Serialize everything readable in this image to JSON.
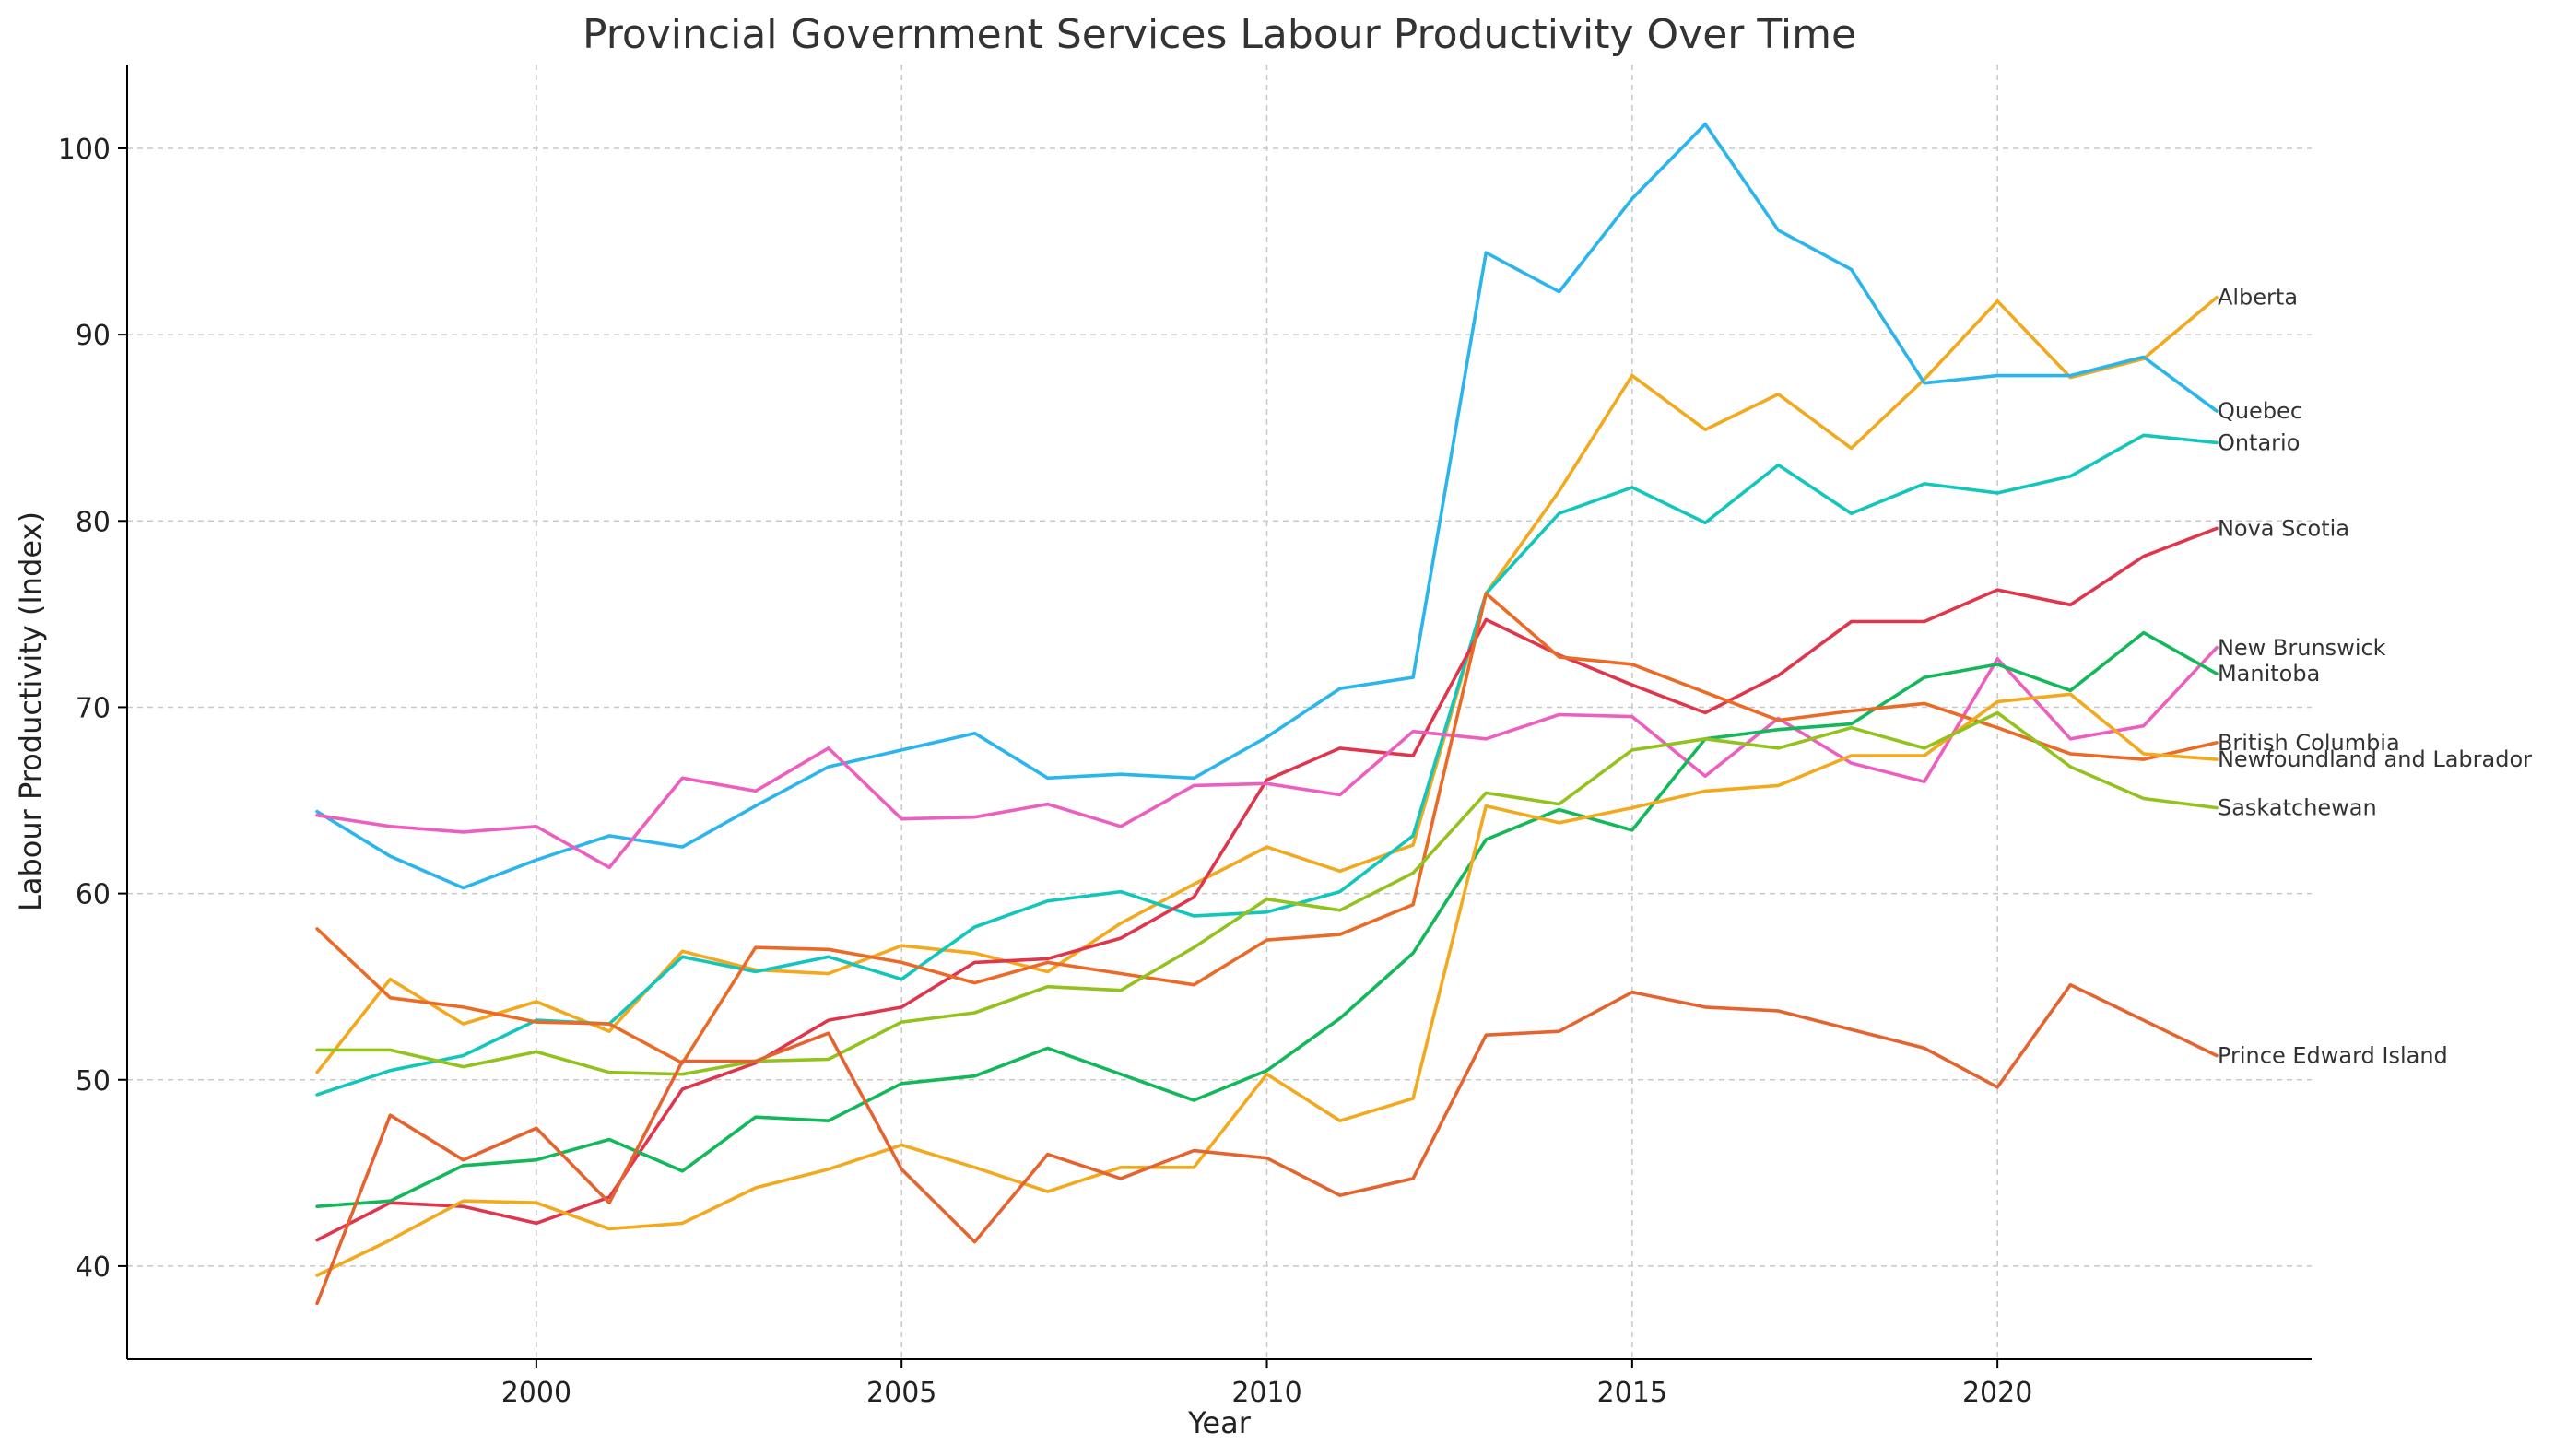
{
  "chart_data": {
    "type": "line",
    "title": "Provincial Government Services Labour Productivity Over Time",
    "xlabel": "Year",
    "ylabel": "Labour Productivity (Index)",
    "xlim": [
      1994.4,
      2024.3
    ],
    "ylim": [
      35,
      104.5
    ],
    "xticks": [
      2000,
      2005,
      2010,
      2015,
      2020
    ],
    "yticks": [
      40,
      50,
      60,
      70,
      80,
      90,
      100
    ],
    "grid": true,
    "x": [
      1997,
      1998,
      1999,
      2000,
      2001,
      2002,
      2003,
      2004,
      2005,
      2006,
      2007,
      2008,
      2009,
      2010,
      2011,
      2012,
      2013,
      2014,
      2015,
      2016,
      2017,
      2018,
      2019,
      2020,
      2021,
      2022,
      2023
    ],
    "series": [
      {
        "name": "Alberta",
        "color": "#f2a91e",
        "label_y": 92.0,
        "values": [
          50.4,
          55.4,
          53.0,
          54.2,
          52.6,
          56.9,
          55.9,
          55.7,
          57.2,
          56.8,
          55.8,
          58.4,
          60.5,
          62.5,
          61.2,
          62.6,
          76.1,
          81.6,
          87.8,
          84.9,
          86.8,
          83.9,
          87.6,
          91.8,
          87.7,
          88.7,
          92.0
        ]
      },
      {
        "name": "Quebec",
        "color": "#2bb5ec",
        "label_y": 85.9,
        "values": [
          64.4,
          62.0,
          60.3,
          61.8,
          63.1,
          62.5,
          64.7,
          66.8,
          67.7,
          68.6,
          66.2,
          66.4,
          66.2,
          68.4,
          71.0,
          71.6,
          94.4,
          92.3,
          97.3,
          101.3,
          95.6,
          93.5,
          87.4,
          87.8,
          87.8,
          88.8,
          85.9
        ]
      },
      {
        "name": "Ontario",
        "color": "#13c6bc",
        "label_y": 84.2,
        "values": [
          49.2,
          50.5,
          51.3,
          53.2,
          53.0,
          56.6,
          55.8,
          56.6,
          55.4,
          58.2,
          59.6,
          60.1,
          58.8,
          59.0,
          60.1,
          63.1,
          76.1,
          80.4,
          81.8,
          79.9,
          83.0,
          80.4,
          82.0,
          81.5,
          82.4,
          84.6,
          84.2
        ]
      },
      {
        "name": "Nova Scotia",
        "color": "#e0364d",
        "label_y": 79.6,
        "values": [
          41.4,
          43.4,
          43.2,
          42.3,
          43.7,
          49.5,
          50.9,
          53.2,
          53.9,
          56.3,
          56.5,
          57.6,
          59.8,
          66.1,
          67.8,
          67.4,
          74.7,
          72.8,
          71.2,
          69.7,
          71.7,
          74.6,
          74.6,
          76.3,
          75.5,
          78.1,
          79.6
        ]
      },
      {
        "name": "New Brunswick",
        "color": "#ec5fbf",
        "label_y": 73.2,
        "values": [
          64.2,
          63.6,
          63.3,
          63.6,
          61.4,
          66.2,
          65.5,
          67.8,
          64.0,
          64.1,
          64.8,
          63.6,
          65.8,
          65.9,
          65.3,
          68.7,
          68.3,
          69.6,
          69.5,
          66.3,
          69.4,
          67.0,
          66.0,
          72.6,
          68.3,
          69.0,
          73.2
        ]
      },
      {
        "name": "Manitoba",
        "color": "#12b85a",
        "label_y": 71.8,
        "values": [
          43.2,
          43.5,
          45.4,
          45.7,
          46.8,
          45.1,
          48.0,
          47.8,
          49.8,
          50.2,
          51.7,
          50.3,
          48.9,
          50.5,
          53.3,
          56.8,
          62.9,
          64.5,
          63.4,
          68.3,
          68.8,
          69.1,
          71.6,
          72.3,
          70.9,
          74.0,
          71.8
        ]
      },
      {
        "name": "British Columbia",
        "color": "#ea6a26",
        "label_y": 68.1,
        "values": [
          58.1,
          54.4,
          53.9,
          53.1,
          53.0,
          50.9,
          57.1,
          57.0,
          56.3,
          55.2,
          56.3,
          55.7,
          55.1,
          57.5,
          57.8,
          59.4,
          76.1,
          72.7,
          72.3,
          70.8,
          69.3,
          69.8,
          70.2,
          68.9,
          67.5,
          67.2,
          68.1
        ]
      },
      {
        "name": "Newfoundland and Labrador",
        "color": "#f2a91e",
        "label_y": 67.2,
        "values": [
          39.5,
          41.4,
          43.5,
          43.4,
          42.0,
          42.3,
          44.2,
          45.2,
          46.5,
          45.3,
          44.0,
          45.3,
          45.3,
          50.3,
          47.8,
          49.0,
          64.7,
          63.8,
          64.6,
          65.5,
          65.8,
          67.4,
          67.4,
          70.3,
          70.7,
          67.5,
          67.2
        ]
      },
      {
        "name": "Saskatchewan",
        "color": "#93c21e",
        "label_y": 64.6,
        "values": [
          51.6,
          51.6,
          50.7,
          51.5,
          50.4,
          50.3,
          51.0,
          51.1,
          53.1,
          53.6,
          55.0,
          54.8,
          57.1,
          59.7,
          59.1,
          61.1,
          65.4,
          64.8,
          67.7,
          68.3,
          67.8,
          68.9,
          67.8,
          69.7,
          66.8,
          65.1,
          64.6
        ]
      },
      {
        "name": "Prince Edward Island",
        "color": "#e5632e",
        "label_y": 51.3,
        "values": [
          38.0,
          48.1,
          45.7,
          47.4,
          43.4,
          51.0,
          51.0,
          52.5,
          45.2,
          41.3,
          46.0,
          44.7,
          46.2,
          45.8,
          43.8,
          44.7,
          52.4,
          52.6,
          54.7,
          53.9,
          53.7,
          52.7,
          51.7,
          49.6,
          55.1,
          53.2,
          51.3
        ]
      }
    ]
  }
}
